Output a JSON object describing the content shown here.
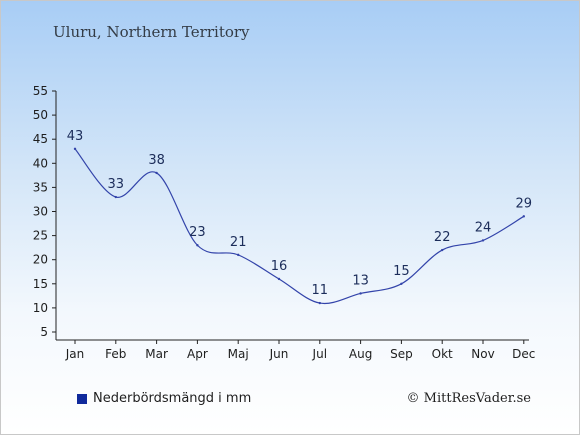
{
  "title": "Uluru, Northern Territory",
  "legend": {
    "label": "Nederbördsmängd i mm"
  },
  "copyright": "© MittResVader.se",
  "colors": {
    "line": "#3344aa",
    "legend_swatch": "#102a9c"
  },
  "chart_data": {
    "type": "line",
    "categories": [
      "Jan",
      "Feb",
      "Mar",
      "Apr",
      "Maj",
      "Jun",
      "Jul",
      "Aug",
      "Sep",
      "Okt",
      "Nov",
      "Dec"
    ],
    "series": [
      {
        "name": "Nederbördsmängd i mm",
        "values": [
          43,
          33,
          38,
          23,
          21,
          16,
          11,
          13,
          15,
          22,
          24,
          29
        ]
      }
    ],
    "ylim": [
      5,
      55
    ],
    "yticks": [
      5,
      10,
      15,
      20,
      25,
      30,
      35,
      40,
      45,
      50,
      55
    ],
    "data_labels": true,
    "grid": false,
    "legend_position": "bottom-left"
  }
}
